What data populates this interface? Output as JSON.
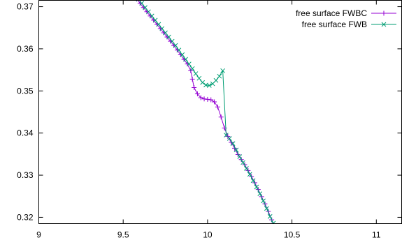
{
  "chart_data": {
    "type": "line",
    "title": "",
    "xlabel": "",
    "ylabel": "",
    "xlim": [
      9,
      11.15
    ],
    "ylim": [
      0.3185,
      0.3715
    ],
    "x_ticks": [
      9,
      9.5,
      10,
      10.5,
      11
    ],
    "x_tick_labels": [
      "9",
      "9.5",
      "10",
      "10.5",
      "11"
    ],
    "y_ticks": [
      0.32,
      0.33,
      0.34,
      0.35,
      0.36,
      0.37
    ],
    "y_tick_labels": [
      "0.32",
      "0.33",
      "0.34",
      "0.35",
      "0.36",
      "0.37"
    ],
    "grid": false,
    "legend_position": "top-right",
    "series": [
      {
        "name": "free surface FWBC",
        "color": "#9400d3",
        "marker": "plus",
        "points": [
          [
            9.58,
            0.3718
          ],
          [
            9.6,
            0.3708
          ],
          [
            9.62,
            0.3698
          ],
          [
            9.64,
            0.3688
          ],
          [
            9.66,
            0.3678
          ],
          [
            9.68,
            0.3668
          ],
          [
            9.7,
            0.3658
          ],
          [
            9.72,
            0.3648
          ],
          [
            9.74,
            0.3638
          ],
          [
            9.76,
            0.3628
          ],
          [
            9.78,
            0.3618
          ],
          [
            9.8,
            0.3608
          ],
          [
            9.82,
            0.3597
          ],
          [
            9.84,
            0.3586
          ],
          [
            9.86,
            0.3575
          ],
          [
            9.88,
            0.3564
          ],
          [
            9.9,
            0.3548
          ],
          [
            9.91,
            0.3528
          ],
          [
            9.92,
            0.3508
          ],
          [
            9.94,
            0.3493
          ],
          [
            9.96,
            0.3484
          ],
          [
            9.98,
            0.3481
          ],
          [
            10.0,
            0.348
          ],
          [
            10.02,
            0.3479
          ],
          [
            10.04,
            0.3474
          ],
          [
            10.06,
            0.3462
          ],
          [
            10.08,
            0.3438
          ],
          [
            10.1,
            0.3412
          ],
          [
            10.12,
            0.3392
          ],
          [
            10.14,
            0.3378
          ],
          [
            10.16,
            0.3364
          ],
          [
            10.18,
            0.3349
          ],
          [
            10.2,
            0.3337
          ],
          [
            10.22,
            0.3325
          ],
          [
            10.24,
            0.3311
          ],
          [
            10.26,
            0.3297
          ],
          [
            10.28,
            0.3282
          ],
          [
            10.3,
            0.3266
          ],
          [
            10.32,
            0.3249
          ],
          [
            10.34,
            0.3232
          ],
          [
            10.36,
            0.3214
          ],
          [
            10.38,
            0.3194
          ],
          [
            10.39,
            0.3182
          ]
        ]
      },
      {
        "name": "free surface FWB",
        "color": "#009e73",
        "marker": "cross",
        "points": [
          [
            9.59,
            0.3718
          ],
          [
            9.61,
            0.3708
          ],
          [
            9.63,
            0.3698
          ],
          [
            9.65,
            0.3688
          ],
          [
            9.67,
            0.3678
          ],
          [
            9.69,
            0.3668
          ],
          [
            9.71,
            0.3658
          ],
          [
            9.73,
            0.3648
          ],
          [
            9.75,
            0.3638
          ],
          [
            9.77,
            0.3628
          ],
          [
            9.79,
            0.3618
          ],
          [
            9.81,
            0.3608
          ],
          [
            9.83,
            0.3597
          ],
          [
            9.85,
            0.3586
          ],
          [
            9.87,
            0.3575
          ],
          [
            9.89,
            0.3564
          ],
          [
            9.91,
            0.3553
          ],
          [
            9.93,
            0.3541
          ],
          [
            9.95,
            0.353
          ],
          [
            9.97,
            0.352
          ],
          [
            9.99,
            0.3514
          ],
          [
            10.01,
            0.3513
          ],
          [
            10.03,
            0.3517
          ],
          [
            10.05,
            0.3525
          ],
          [
            10.07,
            0.3535
          ],
          [
            10.09,
            0.3548
          ],
          [
            10.11,
            0.3395
          ],
          [
            10.13,
            0.3387
          ],
          [
            10.15,
            0.3375
          ],
          [
            10.17,
            0.336
          ],
          [
            10.19,
            0.3344
          ],
          [
            10.21,
            0.333
          ],
          [
            10.23,
            0.3316
          ],
          [
            10.25,
            0.3302
          ],
          [
            10.27,
            0.3287
          ],
          [
            10.29,
            0.3272
          ],
          [
            10.31,
            0.3256
          ],
          [
            10.33,
            0.3239
          ],
          [
            10.35,
            0.3221
          ],
          [
            10.37,
            0.3202
          ],
          [
            10.39,
            0.3186
          ]
        ]
      }
    ]
  }
}
